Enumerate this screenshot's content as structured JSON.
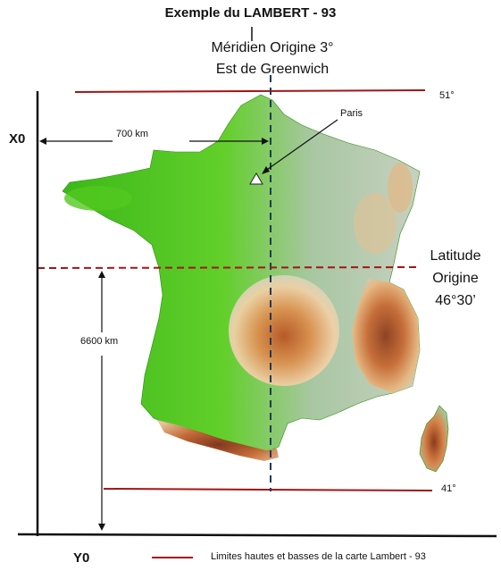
{
  "title": "Exemple du LAMBERT - 93",
  "meridian_label": {
    "line1": "Méridien Origine 3°",
    "line2": "Est de Greenwich"
  },
  "latitude_label": {
    "line1": "Latitude",
    "line2": "Origine",
    "line3": "46°30’"
  },
  "top_limit_label": "51°",
  "bottom_limit_label": "41°",
  "city_label": "Paris",
  "distance_x_label": "700 km",
  "distance_y_label": "6600 km",
  "x_axis_label": "X0",
  "y_axis_label": "Y0",
  "legend_text": "Limites hautes et basses de la carte Lambert - 93",
  "colors": {
    "limit_line": "#a31515",
    "meridian": "#1f3a5f",
    "latitude": "#a31515",
    "lowland": "#46c41c",
    "mid": "#a7c9a0",
    "high": "#d98a46",
    "peak": "#8c3b1c"
  }
}
